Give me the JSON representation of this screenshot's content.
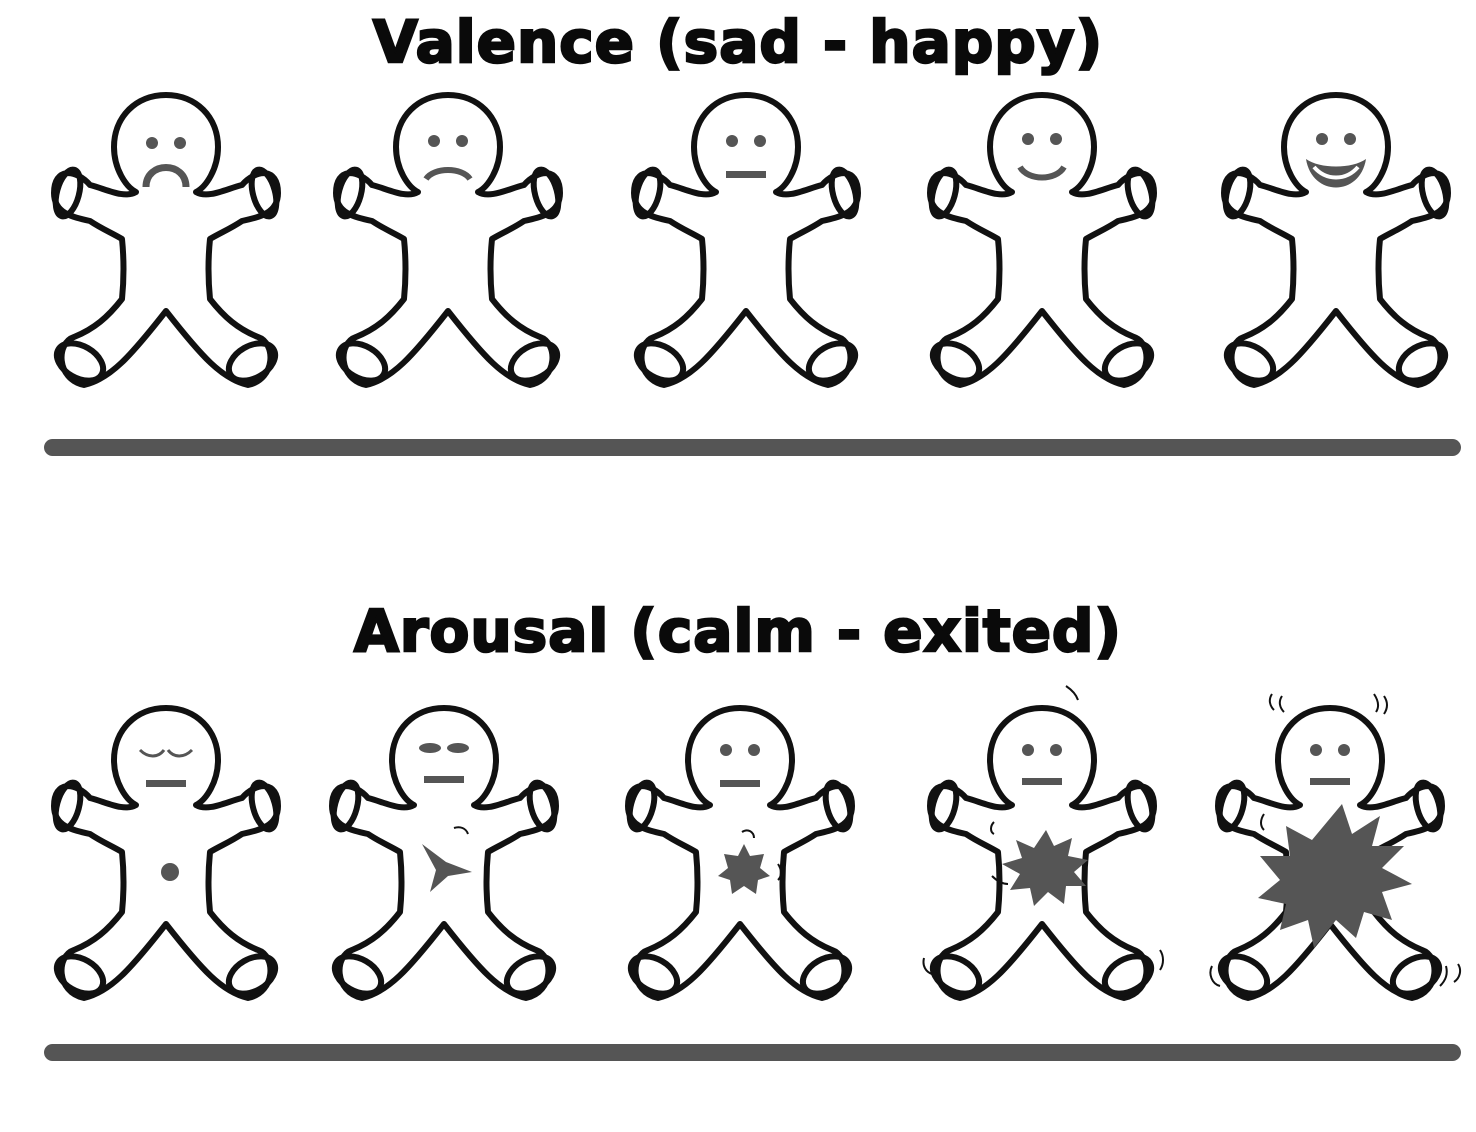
{
  "valence": {
    "title": "Valence (sad - happy)",
    "figures": [
      {
        "face": "very-sad"
      },
      {
        "face": "sad"
      },
      {
        "face": "neutral"
      },
      {
        "face": "happy"
      },
      {
        "face": "very-happy"
      }
    ]
  },
  "arousal": {
    "title": "Arousal (calm - exited)",
    "figures": [
      {
        "eyes": "closed",
        "level": 1
      },
      {
        "eyes": "half-open",
        "level": 2
      },
      {
        "eyes": "open",
        "level": 3
      },
      {
        "eyes": "open",
        "level": 4
      },
      {
        "eyes": "open",
        "level": 5
      }
    ]
  },
  "colors": {
    "outline": "#111111",
    "feature": "#555555",
    "scale_bar": "#555555"
  }
}
